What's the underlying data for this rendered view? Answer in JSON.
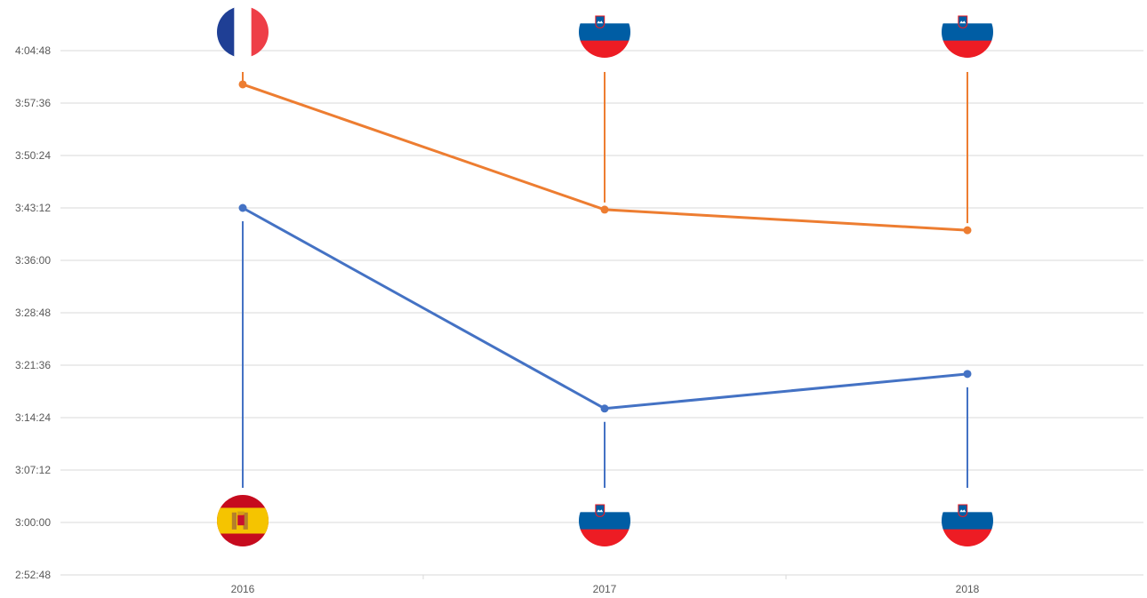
{
  "chart_data": {
    "type": "line",
    "title": "",
    "xlabel": "",
    "ylabel": "",
    "categories": [
      "2016",
      "2017",
      "2018"
    ],
    "y_ticks": [
      "2:52:48",
      "3:00:00",
      "3:07:12",
      "3:14:24",
      "3:21:36",
      "3:28:48",
      "3:36:00",
      "3:43:12",
      "3:50:24",
      "3:57:36",
      "4:04:48"
    ],
    "ylim": [
      "2:52:48",
      "4:04:48"
    ],
    "grid": true,
    "series": [
      {
        "color": "#ed7d31",
        "values": [
          "4:00:10",
          "3:42:58",
          "3:40:08"
        ],
        "flags": [
          "france-flag",
          "slovenia-flag",
          "slovenia-flag"
        ],
        "flag_side": "top"
      },
      {
        "color": "#4472c4",
        "values": [
          "3:43:12",
          "3:15:39",
          "3:20:24"
        ],
        "flags": [
          "spain-flag",
          "slovenia-flag",
          "slovenia-flag"
        ],
        "flag_side": "bottom"
      }
    ]
  }
}
